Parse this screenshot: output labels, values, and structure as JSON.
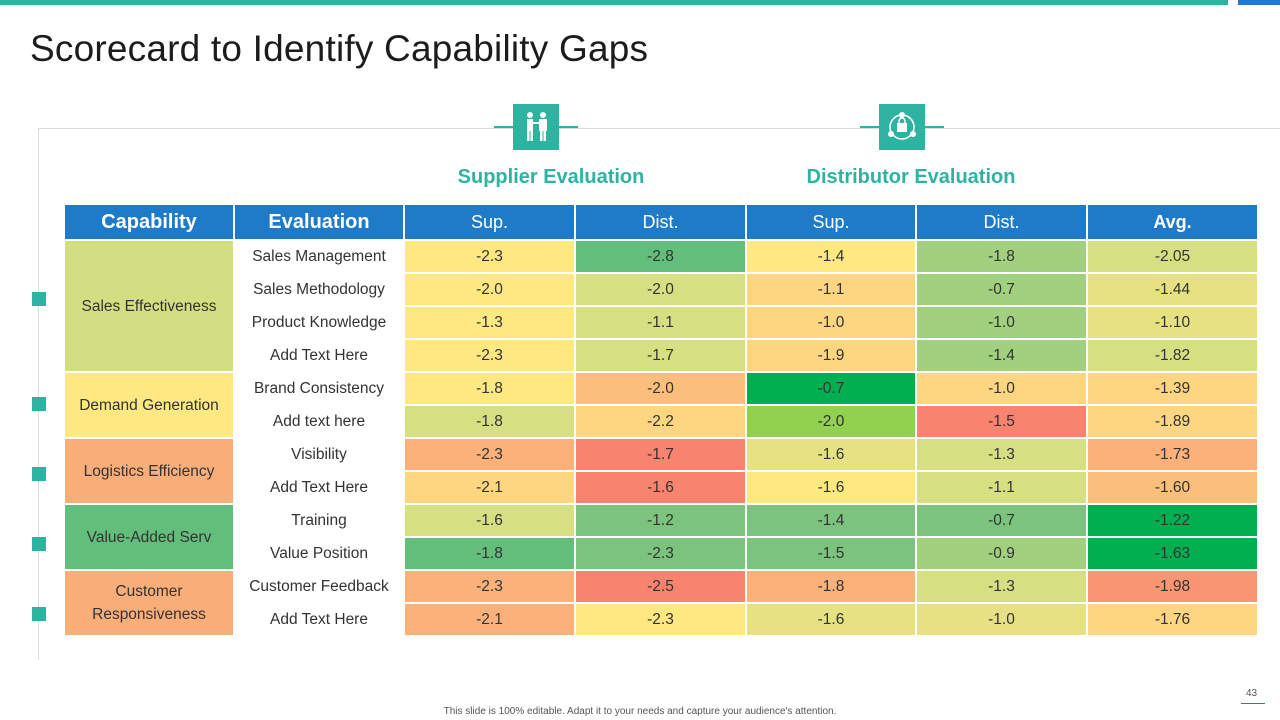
{
  "title": "Scorecard to Identify Capability Gaps",
  "groups": {
    "supplier": {
      "label": "Supplier Evaluation",
      "icon": "handshake-icon"
    },
    "distributor": {
      "label": "Distributor Evaluation",
      "icon": "network-icon"
    }
  },
  "headers": {
    "capability": "Capability",
    "evaluation": "Evaluation",
    "sup1": "Sup.",
    "dist1": "Dist.",
    "sup2": "Sup.",
    "dist2": "Dist.",
    "avg": "Avg."
  },
  "capabilities": [
    {
      "name": "Sales Effectiveness",
      "color": "#d2de82"
    },
    {
      "name": "Demand Generation",
      "color": "#fde882"
    },
    {
      "name": "Logistics Efficiency",
      "color": "#f9ad78"
    },
    {
      "name": "Value-Added Serv",
      "color": "#63bd7b"
    },
    {
      "name": "Customer Responsiveness",
      "color": "#f9ad78"
    }
  ],
  "rows": [
    {
      "cap": 0,
      "evaluation": "Sales Management",
      "values": [
        "-2.3",
        "-2.8",
        "-1.4",
        "-1.8",
        "-2.05"
      ],
      "colors": [
        "#fde882",
        "#63bd7b",
        "#fde882",
        "#a1d07f",
        "#d6df81"
      ]
    },
    {
      "cap": 0,
      "evaluation": "Sales Methodology",
      "values": [
        "-2.0",
        "-2.0",
        "-1.1",
        "-0.7",
        "-1.44"
      ],
      "colors": [
        "#fde882",
        "#d6df81",
        "#fed580",
        "#a1d07f",
        "#e6e283"
      ]
    },
    {
      "cap": 0,
      "evaluation": "Product Knowledge",
      "values": [
        "-1.3",
        "-1.1",
        "-1.0",
        "-1.0",
        "-1.10"
      ],
      "colors": [
        "#fde882",
        "#d6df81",
        "#fed580",
        "#a1d07f",
        "#e6e283"
      ]
    },
    {
      "cap": 0,
      "evaluation": "Add Text Here",
      "values": [
        "-2.3",
        "-1.7",
        "-1.9",
        "-1.4",
        "-1.82"
      ],
      "colors": [
        "#fde882",
        "#d6df81",
        "#fed580",
        "#a1d07f",
        "#d6df81"
      ]
    },
    {
      "cap": 1,
      "evaluation": "Brand Consistency",
      "values": [
        "-1.8",
        "-2.0",
        "-0.7",
        "-1.0",
        "-1.39"
      ],
      "colors": [
        "#fde882",
        "#fbbf7b",
        "#00b050",
        "#fed580",
        "#fed580"
      ]
    },
    {
      "cap": 1,
      "evaluation": "Add text here",
      "values": [
        "-1.8",
        "-2.2",
        "-2.0",
        "-1.5",
        "-1.89"
      ],
      "colors": [
        "#d6df81",
        "#fed580",
        "#92d050",
        "#f8836e",
        "#fed580"
      ]
    },
    {
      "cap": 2,
      "evaluation": "Visibility",
      "values": [
        "-2.3",
        "-1.7",
        "-1.6",
        "-1.3",
        "-1.73"
      ],
      "colors": [
        "#fbb179",
        "#f8836e",
        "#e6e283",
        "#d6df81",
        "#fbb179"
      ]
    },
    {
      "cap": 2,
      "evaluation": "Add Text Here",
      "values": [
        "-2.1",
        "-1.6",
        "-1.6",
        "-1.1",
        "-1.60"
      ],
      "colors": [
        "#fed580",
        "#f8836e",
        "#fde882",
        "#d6df81",
        "#fbbf7b"
      ]
    },
    {
      "cap": 3,
      "evaluation": "Training",
      "values": [
        "-1.6",
        "-1.2",
        "-1.4",
        "-0.7",
        "-1.22"
      ],
      "colors": [
        "#d6df81",
        "#7cc47d",
        "#7cc47d",
        "#7cc47d",
        "#00b050"
      ]
    },
    {
      "cap": 3,
      "evaluation": "Value Position",
      "values": [
        "-1.8",
        "-2.3",
        "-1.5",
        "-0.9",
        "-1.63"
      ],
      "colors": [
        "#63bd7b",
        "#7cc47d",
        "#7cc47d",
        "#a1d07f",
        "#00b050"
      ]
    },
    {
      "cap": 4,
      "evaluation": "Customer Feedback",
      "values": [
        "-2.3",
        "-2.5",
        "-1.8",
        "-1.3",
        "-1.98"
      ],
      "colors": [
        "#fbb179",
        "#f8836e",
        "#fbb179",
        "#d6df81",
        "#f99672"
      ]
    },
    {
      "cap": 4,
      "evaluation": "Add Text Here",
      "values": [
        "-2.1",
        "-2.3",
        "-1.6",
        "-1.0",
        "-1.76"
      ],
      "colors": [
        "#fbb179",
        "#fde882",
        "#e6e283",
        "#e6e283",
        "#fed580"
      ]
    }
  ],
  "footer": "This slide is 100% editable. Adapt it to your needs and capture your audience's attention.",
  "page_number": "43",
  "accent_colors": {
    "teal": "#2db3a0",
    "blue": "#1f7bc8"
  }
}
